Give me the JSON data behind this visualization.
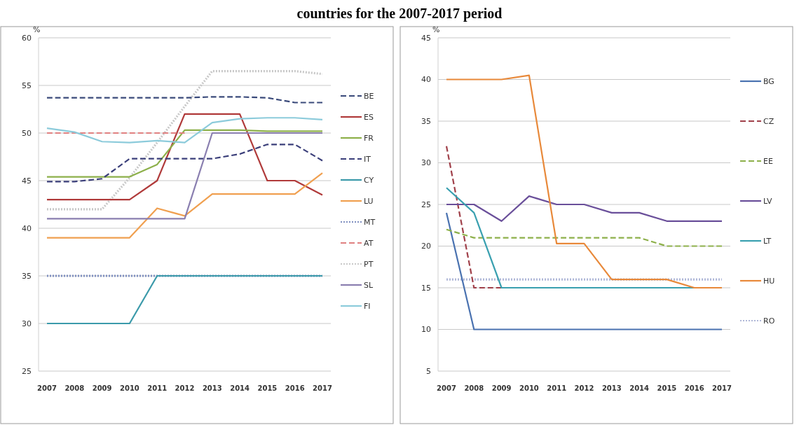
{
  "chart_data": [
    {
      "type": "line",
      "title": "countries for the 2007-2017 period",
      "ylabel": "%",
      "categories": [
        "2007",
        "2008",
        "2009",
        "2010",
        "2011",
        "2012",
        "2013",
        "2014",
        "2015",
        "2016",
        "2017"
      ],
      "ylim": [
        25,
        60
      ],
      "yticks": [
        25,
        30,
        35,
        40,
        45,
        50,
        55,
        60
      ],
      "grid": "y",
      "legend": "right",
      "marker": "none",
      "series": [
        {
          "name": "BE",
          "color": "#3a4a7a",
          "line_style": "dashed",
          "values": [
            53.7,
            53.7,
            53.7,
            53.7,
            53.7,
            53.7,
            53.8,
            53.8,
            53.7,
            53.2,
            53.2
          ]
        },
        {
          "name": "ES",
          "color": "#b03a3a",
          "line_style": "solid",
          "values": [
            43,
            43,
            43,
            43,
            45,
            52,
            52,
            52,
            45,
            45,
            43.5
          ]
        },
        {
          "name": "FR",
          "color": "#8db04a",
          "line_style": "solid",
          "values": [
            45.4,
            45.4,
            45.4,
            45.4,
            46.7,
            50.3,
            50.3,
            50.3,
            50.2,
            50.2,
            50.2
          ]
        },
        {
          "name": "IT",
          "color": "#3b3f7a",
          "line_style": "dashed",
          "values": [
            44.9,
            44.9,
            45.2,
            47.3,
            47.3,
            47.3,
            47.3,
            47.8,
            48.8,
            48.8,
            47.1
          ]
        },
        {
          "name": "CY",
          "color": "#3b9aaa",
          "line_style": "solid",
          "values": [
            30,
            30,
            30,
            30,
            35,
            35,
            35,
            35,
            35,
            35,
            35
          ]
        },
        {
          "name": "LU",
          "color": "#f0a050",
          "line_style": "solid",
          "values": [
            39,
            39,
            39,
            39,
            42.1,
            41.3,
            43.6,
            43.6,
            43.6,
            43.6,
            45.8
          ]
        },
        {
          "name": "MT",
          "color": "#7f8fc0",
          "line_style": "dotted",
          "values": [
            35,
            35,
            35,
            35,
            35,
            35,
            35,
            35,
            35,
            35,
            35
          ]
        },
        {
          "name": "AT",
          "color": "#e08080",
          "line_style": "dashed",
          "values": [
            50,
            50,
            50,
            50,
            50,
            50,
            null,
            null,
            null,
            null,
            null
          ]
        },
        {
          "name": "PT",
          "color": "#c8c8c8",
          "line_style": "dotted",
          "values": [
            42,
            42,
            42,
            45.3,
            49,
            52.8,
            56.5,
            56.5,
            56.5,
            56.5,
            56.2
          ]
        },
        {
          "name": "SL",
          "color": "#8a7fb0",
          "line_style": "solid",
          "values": [
            41,
            41,
            41,
            41,
            41,
            41,
            50,
            50,
            50,
            50,
            50
          ]
        },
        {
          "name": "FI",
          "color": "#8ccbdb",
          "line_style": "solid",
          "values": [
            50.5,
            50.1,
            49.1,
            49,
            49.2,
            49,
            51.1,
            51.5,
            51.6,
            51.6,
            51.4
          ]
        }
      ]
    },
    {
      "type": "line",
      "ylabel": "%",
      "categories": [
        "2007",
        "2008",
        "2009",
        "2010",
        "2011",
        "2012",
        "2013",
        "2014",
        "2015",
        "2016",
        "2017"
      ],
      "ylim": [
        5,
        45
      ],
      "yticks": [
        5,
        10,
        15,
        20,
        25,
        30,
        35,
        40,
        45
      ],
      "grid": "y",
      "legend": "right",
      "marker": "none",
      "series": [
        {
          "name": "BG",
          "color": "#4a72b0",
          "line_style": "solid",
          "values": [
            24,
            10,
            10,
            10,
            10,
            10,
            10,
            10,
            10,
            10,
            10
          ]
        },
        {
          "name": "CZ",
          "color": "#a0404a",
          "line_style": "dashed",
          "values": [
            32,
            15,
            15,
            null,
            null,
            null,
            null,
            null,
            null,
            null,
            null
          ]
        },
        {
          "name": "EE",
          "color": "#8db04a",
          "line_style": "dashed",
          "values": [
            22,
            21,
            21,
            21,
            21,
            21,
            21,
            21,
            20,
            20,
            20
          ]
        },
        {
          "name": "LV",
          "color": "#6a4f9a",
          "line_style": "solid",
          "values": [
            25,
            25,
            23,
            26,
            25,
            25,
            24,
            24,
            23,
            23,
            23
          ]
        },
        {
          "name": "LT",
          "color": "#3aa0b0",
          "line_style": "solid",
          "values": [
            27,
            24,
            15,
            15,
            15,
            15,
            15,
            15,
            15,
            15,
            null
          ]
        },
        {
          "name": "HU",
          "color": "#e8893a",
          "line_style": "solid",
          "values": [
            40,
            40,
            40,
            40.5,
            20.3,
            20.3,
            16,
            16,
            16,
            15,
            15
          ]
        },
        {
          "name": "RO",
          "color": "#b0b8d8",
          "line_style": "dotted",
          "values": [
            16,
            16,
            16,
            16,
            16,
            16,
            16,
            16,
            16,
            16,
            16
          ]
        }
      ]
    }
  ]
}
